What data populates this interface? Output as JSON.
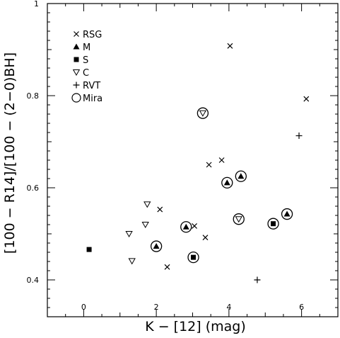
{
  "chart_data": {
    "type": "scatter",
    "title": "",
    "xlabel": "K − [12] (mag)",
    "ylabel": "[100 − R14]/[100 − (2−0)BH]",
    "xlim": [
      -1,
      7
    ],
    "ylim": [
      0.32,
      1.0
    ],
    "x_ticks": [
      0,
      2,
      4,
      6
    ],
    "x_tick_labels": [
      "0",
      "2",
      "4",
      "6"
    ],
    "y_ticks": [
      0.4,
      0.6,
      0.8,
      1.0
    ],
    "y_tick_labels": [
      "0.4",
      "0.6",
      "0.8",
      "1"
    ],
    "grid": false,
    "legend_position": "top-left",
    "series": [
      {
        "name": "RSG",
        "marker": "cross",
        "points": [
          {
            "x": 2.1,
            "y": 0.553
          },
          {
            "x": 2.3,
            "y": 0.428
          },
          {
            "x": 3.05,
            "y": 0.517
          },
          {
            "x": 3.35,
            "y": 0.492
          },
          {
            "x": 3.45,
            "y": 0.65
          },
          {
            "x": 3.8,
            "y": 0.66
          },
          {
            "x": 4.03,
            "y": 0.908
          },
          {
            "x": 6.13,
            "y": 0.793
          }
        ]
      },
      {
        "name": "M",
        "marker": "triangle-up",
        "points": [
          {
            "x": 2.0,
            "y": 0.473,
            "mira": true
          },
          {
            "x": 2.82,
            "y": 0.515,
            "mira": true
          },
          {
            "x": 3.95,
            "y": 0.611,
            "mira": true
          },
          {
            "x": 4.33,
            "y": 0.625,
            "mira": true
          },
          {
            "x": 5.6,
            "y": 0.543,
            "mira": true
          }
        ]
      },
      {
        "name": "S",
        "marker": "square",
        "points": [
          {
            "x": 0.15,
            "y": 0.466
          },
          {
            "x": 3.02,
            "y": 0.449,
            "mira": true
          },
          {
            "x": 5.22,
            "y": 0.522,
            "mira": true
          }
        ]
      },
      {
        "name": "C",
        "marker": "triangle-down",
        "points": [
          {
            "x": 1.25,
            "y": 0.5
          },
          {
            "x": 1.33,
            "y": 0.441
          },
          {
            "x": 1.7,
            "y": 0.52
          },
          {
            "x": 1.75,
            "y": 0.564
          },
          {
            "x": 3.28,
            "y": 0.762,
            "mira": true
          },
          {
            "x": 4.27,
            "y": 0.532,
            "mira": true
          }
        ]
      },
      {
        "name": "RVT",
        "marker": "plus",
        "points": [
          {
            "x": 4.78,
            "y": 0.4
          },
          {
            "x": 5.93,
            "y": 0.713
          }
        ]
      }
    ],
    "legend": [
      {
        "label": "RSG",
        "marker": "cross"
      },
      {
        "label": "M",
        "marker": "triangle-up"
      },
      {
        "label": "S",
        "marker": "square"
      },
      {
        "label": "C",
        "marker": "triangle-down"
      },
      {
        "label": "RVT",
        "marker": "plus"
      },
      {
        "label": "Mira",
        "marker": "circle"
      }
    ]
  }
}
